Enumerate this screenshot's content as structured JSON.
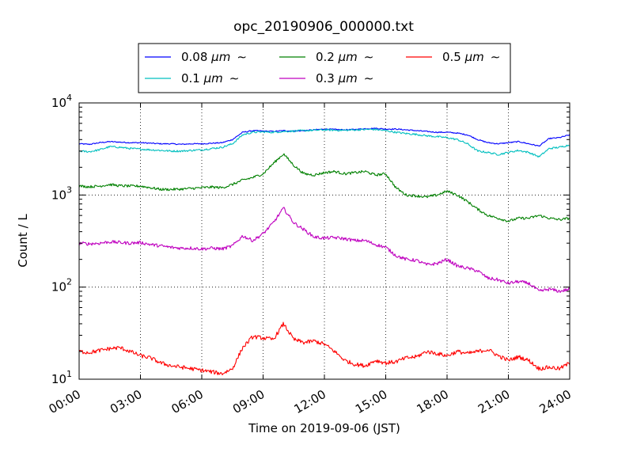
{
  "chart_data": {
    "type": "line",
    "title": "opc_20190906_000000.txt",
    "xlabel": "Time on 2019-09-06 (JST)",
    "ylabel": "Count / L",
    "y_scale": "log",
    "ylim": [
      10,
      10000
    ],
    "xlim": [
      "2019-09-06 00:00",
      "2019-09-07 00:00"
    ],
    "grid": true,
    "legend_position": "top-center-above-plot",
    "x_tick_labels": [
      "00:00",
      "03:00",
      "06:00",
      "09:00",
      "12:00",
      "15:00",
      "18:00",
      "21:00",
      "24:00"
    ],
    "y_tick_labels": [
      {
        "base": "10",
        "exp": "1"
      },
      {
        "base": "10",
        "exp": "2"
      },
      {
        "base": "10",
        "exp": "3"
      },
      {
        "base": "10",
        "exp": "4"
      }
    ],
    "x_hours": [
      0,
      0.5,
      1,
      1.5,
      2,
      2.5,
      3,
      3.5,
      4,
      4.5,
      5,
      5.5,
      6,
      6.5,
      7,
      7.5,
      8,
      8.5,
      9,
      9.5,
      10,
      10.5,
      11,
      11.5,
      12,
      12.5,
      13,
      13.5,
      14,
      14.5,
      15,
      15.5,
      16,
      16.5,
      17,
      17.5,
      18,
      18.5,
      19,
      19.5,
      20,
      20.5,
      21,
      21.5,
      22,
      22.5,
      23,
      23.5,
      24
    ],
    "series": [
      {
        "name": "0.08 μm ∼",
        "label_text": "0.08 ",
        "color": "#0000ff",
        "values": [
          3600,
          3550,
          3700,
          3800,
          3750,
          3700,
          3700,
          3650,
          3600,
          3600,
          3550,
          3600,
          3600,
          3650,
          3700,
          4000,
          4800,
          5000,
          4950,
          4900,
          5000,
          4950,
          5000,
          5100,
          5200,
          5150,
          5100,
          5150,
          5250,
          5300,
          5200,
          5200,
          5100,
          5000,
          4900,
          4800,
          4800,
          4700,
          4500,
          4000,
          3700,
          3600,
          3700,
          3800,
          3600,
          3400,
          4100,
          4200,
          4500
        ]
      },
      {
        "name": "0.1 μm ∼",
        "label_text": "0.1 ",
        "color": "#00bfbf",
        "values": [
          3000,
          2950,
          3100,
          3350,
          3300,
          3200,
          3150,
          3100,
          3050,
          3000,
          3000,
          3050,
          3100,
          3200,
          3300,
          3600,
          4500,
          4800,
          4850,
          4800,
          4900,
          4950,
          5000,
          5050,
          5100,
          5050,
          5050,
          5100,
          5150,
          5150,
          5000,
          4800,
          4650,
          4550,
          4400,
          4300,
          4200,
          4000,
          3600,
          3000,
          2900,
          2750,
          2900,
          3050,
          2900,
          2600,
          3200,
          3300,
          3500
        ]
      },
      {
        "name": "0.2 μm ∼",
        "label_text": "0.2 ",
        "color": "#008000",
        "values": [
          1250,
          1230,
          1250,
          1300,
          1260,
          1250,
          1250,
          1200,
          1150,
          1150,
          1160,
          1180,
          1200,
          1220,
          1200,
          1300,
          1450,
          1550,
          1700,
          2200,
          2800,
          2100,
          1700,
          1650,
          1750,
          1800,
          1700,
          1750,
          1800,
          1650,
          1700,
          1200,
          1000,
          980,
          950,
          1000,
          1100,
          1000,
          850,
          700,
          600,
          560,
          520,
          560,
          560,
          600,
          560,
          540,
          560
        ]
      },
      {
        "name": "0.3 μm ∼",
        "label_text": "0.3 ",
        "color": "#bf00bf",
        "values": [
          300,
          295,
          300,
          310,
          305,
          300,
          305,
          290,
          280,
          270,
          265,
          265,
          260,
          265,
          260,
          280,
          360,
          320,
          380,
          500,
          720,
          500,
          420,
          350,
          340,
          345,
          335,
          320,
          320,
          290,
          270,
          220,
          200,
          195,
          175,
          180,
          200,
          170,
          160,
          150,
          125,
          120,
          110,
          115,
          110,
          90,
          95,
          90,
          95
        ]
      },
      {
        "name": "0.5 μm ∼",
        "label_text": "0.5 ",
        "color": "#ff0000",
        "values": [
          20,
          19.5,
          20.5,
          21.5,
          22,
          20,
          18,
          17,
          15,
          14,
          13.5,
          13,
          12.5,
          12,
          11.5,
          13,
          22,
          29,
          28,
          27,
          40,
          27,
          25,
          26,
          24,
          20,
          16,
          14.5,
          14,
          16,
          15,
          15.5,
          17,
          17.5,
          20,
          19,
          18,
          20,
          19,
          20,
          21,
          18,
          16,
          17.5,
          16,
          13,
          13.5,
          13,
          15
        ]
      }
    ]
  },
  "legend_unit": "μm",
  "legend_tilde": "∼"
}
